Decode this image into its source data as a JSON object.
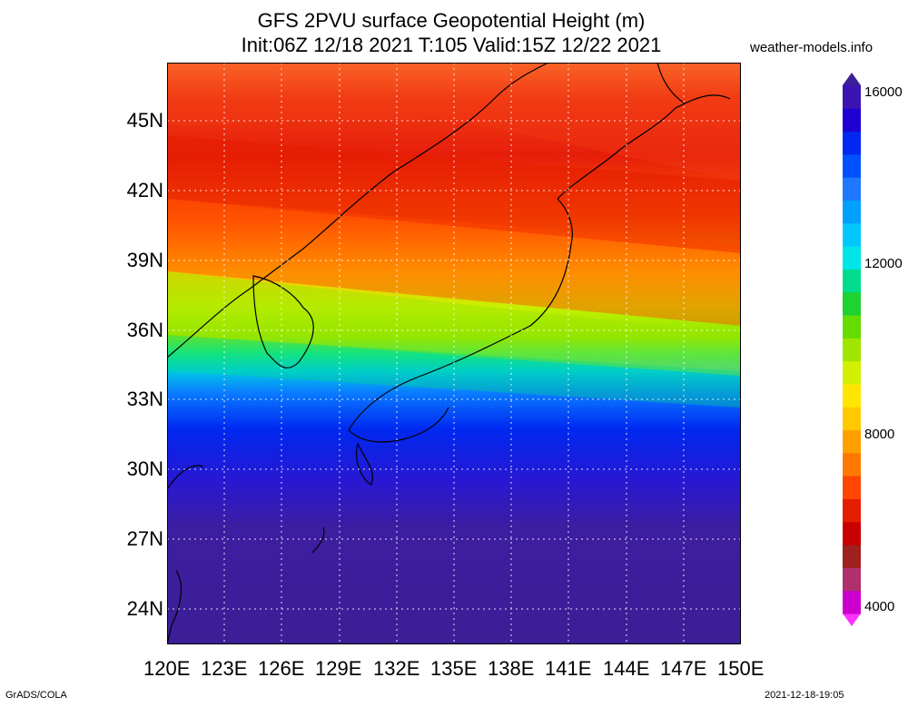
{
  "header": {
    "title_line1": "GFS 2PVU surface Geopotential Height (m)",
    "title_line2": "Init:06Z 12/18 2021 T:105 Valid:15Z 12/22 2021",
    "site": "weather-models.info"
  },
  "map": {
    "lat_labels": [
      "45N",
      "42N",
      "39N",
      "36N",
      "33N",
      "30N",
      "27N",
      "24N"
    ],
    "lon_labels": [
      "120E",
      "123E",
      "126E",
      "129E",
      "132E",
      "135E",
      "138E",
      "141E",
      "144E",
      "147E",
      "150E"
    ],
    "extent": {
      "lon_min": 120,
      "lon_max": 150,
      "lat_min": 22.5,
      "lat_max": 47.5
    }
  },
  "colorbar": {
    "labels": [
      "16000",
      "12000",
      "8000",
      "4000"
    ],
    "colors": [
      "#ff33ff",
      "#cc00cc",
      "#b0306e",
      "#a0201e",
      "#c80000",
      "#e61e00",
      "#ff4600",
      "#ff7800",
      "#ffa000",
      "#ffc800",
      "#ffe600",
      "#d2f000",
      "#a0e600",
      "#64dc00",
      "#1ed232",
      "#00dc8c",
      "#00e6e6",
      "#00c8ff",
      "#00a0ff",
      "#1e78ff",
      "#0050ff",
      "#0028f0",
      "#1e00d2",
      "#3c14b4",
      "#3c1e96"
    ]
  },
  "footer": {
    "left": "GrADS/COLA",
    "right": "2021-12-18-19:05"
  }
}
